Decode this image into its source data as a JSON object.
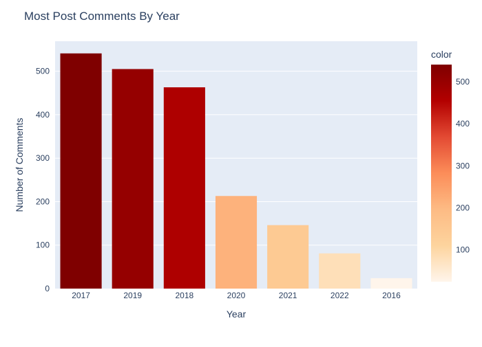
{
  "chart_data": {
    "type": "bar",
    "title": "Most Post Comments By Year",
    "xlabel": "Year",
    "ylabel": "Number of Comments",
    "categories": [
      "2017",
      "2019",
      "2018",
      "2020",
      "2021",
      "2022",
      "2016"
    ],
    "values": [
      541,
      505,
      463,
      213,
      146,
      81,
      24
    ],
    "ylim": [
      0,
      569
    ],
    "yticks": [
      0,
      100,
      200,
      300,
      400,
      500
    ],
    "grid": true,
    "colorbar": {
      "title": "color",
      "range": [
        24,
        541
      ],
      "ticks": [
        100,
        200,
        300,
        400,
        500
      ],
      "colorscale": [
        "#fff5eb",
        "#fdd49e",
        "#fdbb84",
        "#fc8d59",
        "#e34a33",
        "#b30000",
        "#7f0000"
      ]
    }
  }
}
